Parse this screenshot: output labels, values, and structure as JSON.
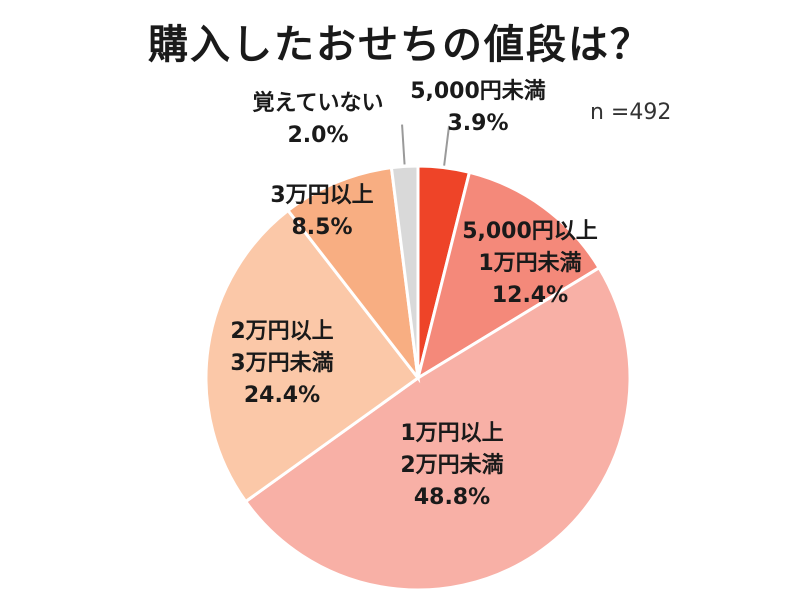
{
  "title": "購入したおせちの値段は？",
  "sample_size": "n =492",
  "chart_data": {
    "type": "pie",
    "title": "購入したおせちの値段は？",
    "n_label": "n =492",
    "start_angle_deg": 0,
    "direction": "clockwise",
    "slices": [
      {
        "label_lines": [
          "5,000円未満"
        ],
        "value_label": "3.9%",
        "value": 3.9,
        "color": "#ee4428"
      },
      {
        "label_lines": [
          "5,000円以上",
          "1万円未満"
        ],
        "value_label": "12.4%",
        "value": 12.4,
        "color": "#f4897a"
      },
      {
        "label_lines": [
          "1万円以上",
          "2万円未満"
        ],
        "value_label": "48.8%",
        "value": 48.8,
        "color": "#f8b0a6"
      },
      {
        "label_lines": [
          "2万円以上",
          "3万円未満"
        ],
        "value_label": "24.4%",
        "value": 24.4,
        "color": "#fbc8a8"
      },
      {
        "label_lines": [
          "3万円以上"
        ],
        "value_label": "8.5%",
        "value": 8.5,
        "color": "#f8ae82"
      },
      {
        "label_lines": [
          "覚えていない"
        ],
        "value_label": "2.0%",
        "value": 2.0,
        "color": "#d9d9d9"
      }
    ]
  }
}
